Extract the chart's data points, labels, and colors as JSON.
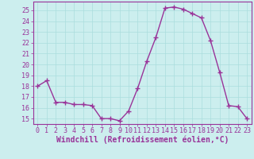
{
  "x": [
    0,
    1,
    2,
    3,
    4,
    5,
    6,
    7,
    8,
    9,
    10,
    11,
    12,
    13,
    14,
    15,
    16,
    17,
    18,
    19,
    20,
    21,
    22,
    23
  ],
  "y": [
    18.0,
    18.5,
    16.5,
    16.5,
    16.3,
    16.3,
    16.2,
    15.0,
    15.0,
    14.8,
    15.7,
    17.8,
    20.3,
    22.5,
    25.2,
    25.3,
    25.1,
    24.7,
    24.3,
    22.2,
    19.3,
    16.2,
    16.1,
    15.0
  ],
  "line_color": "#993399",
  "marker": "+",
  "markersize": 4,
  "markeredgewidth": 1.0,
  "linewidth": 1.0,
  "xlabel": "Windchill (Refroidissement éolien,°C)",
  "xlabel_fontsize": 7,
  "xlabel_color": "#993399",
  "xlim": [
    -0.5,
    23.5
  ],
  "ylim": [
    14.5,
    25.8
  ],
  "yticks": [
    15,
    16,
    17,
    18,
    19,
    20,
    21,
    22,
    23,
    24,
    25
  ],
  "xticks": [
    0,
    1,
    2,
    3,
    4,
    5,
    6,
    7,
    8,
    9,
    10,
    11,
    12,
    13,
    14,
    15,
    16,
    17,
    18,
    19,
    20,
    21,
    22,
    23
  ],
  "bg_color": "#cceeee",
  "grid_color": "#aadddd",
  "tick_color": "#993399",
  "tick_fontsize": 6,
  "spine_color": "#993399"
}
